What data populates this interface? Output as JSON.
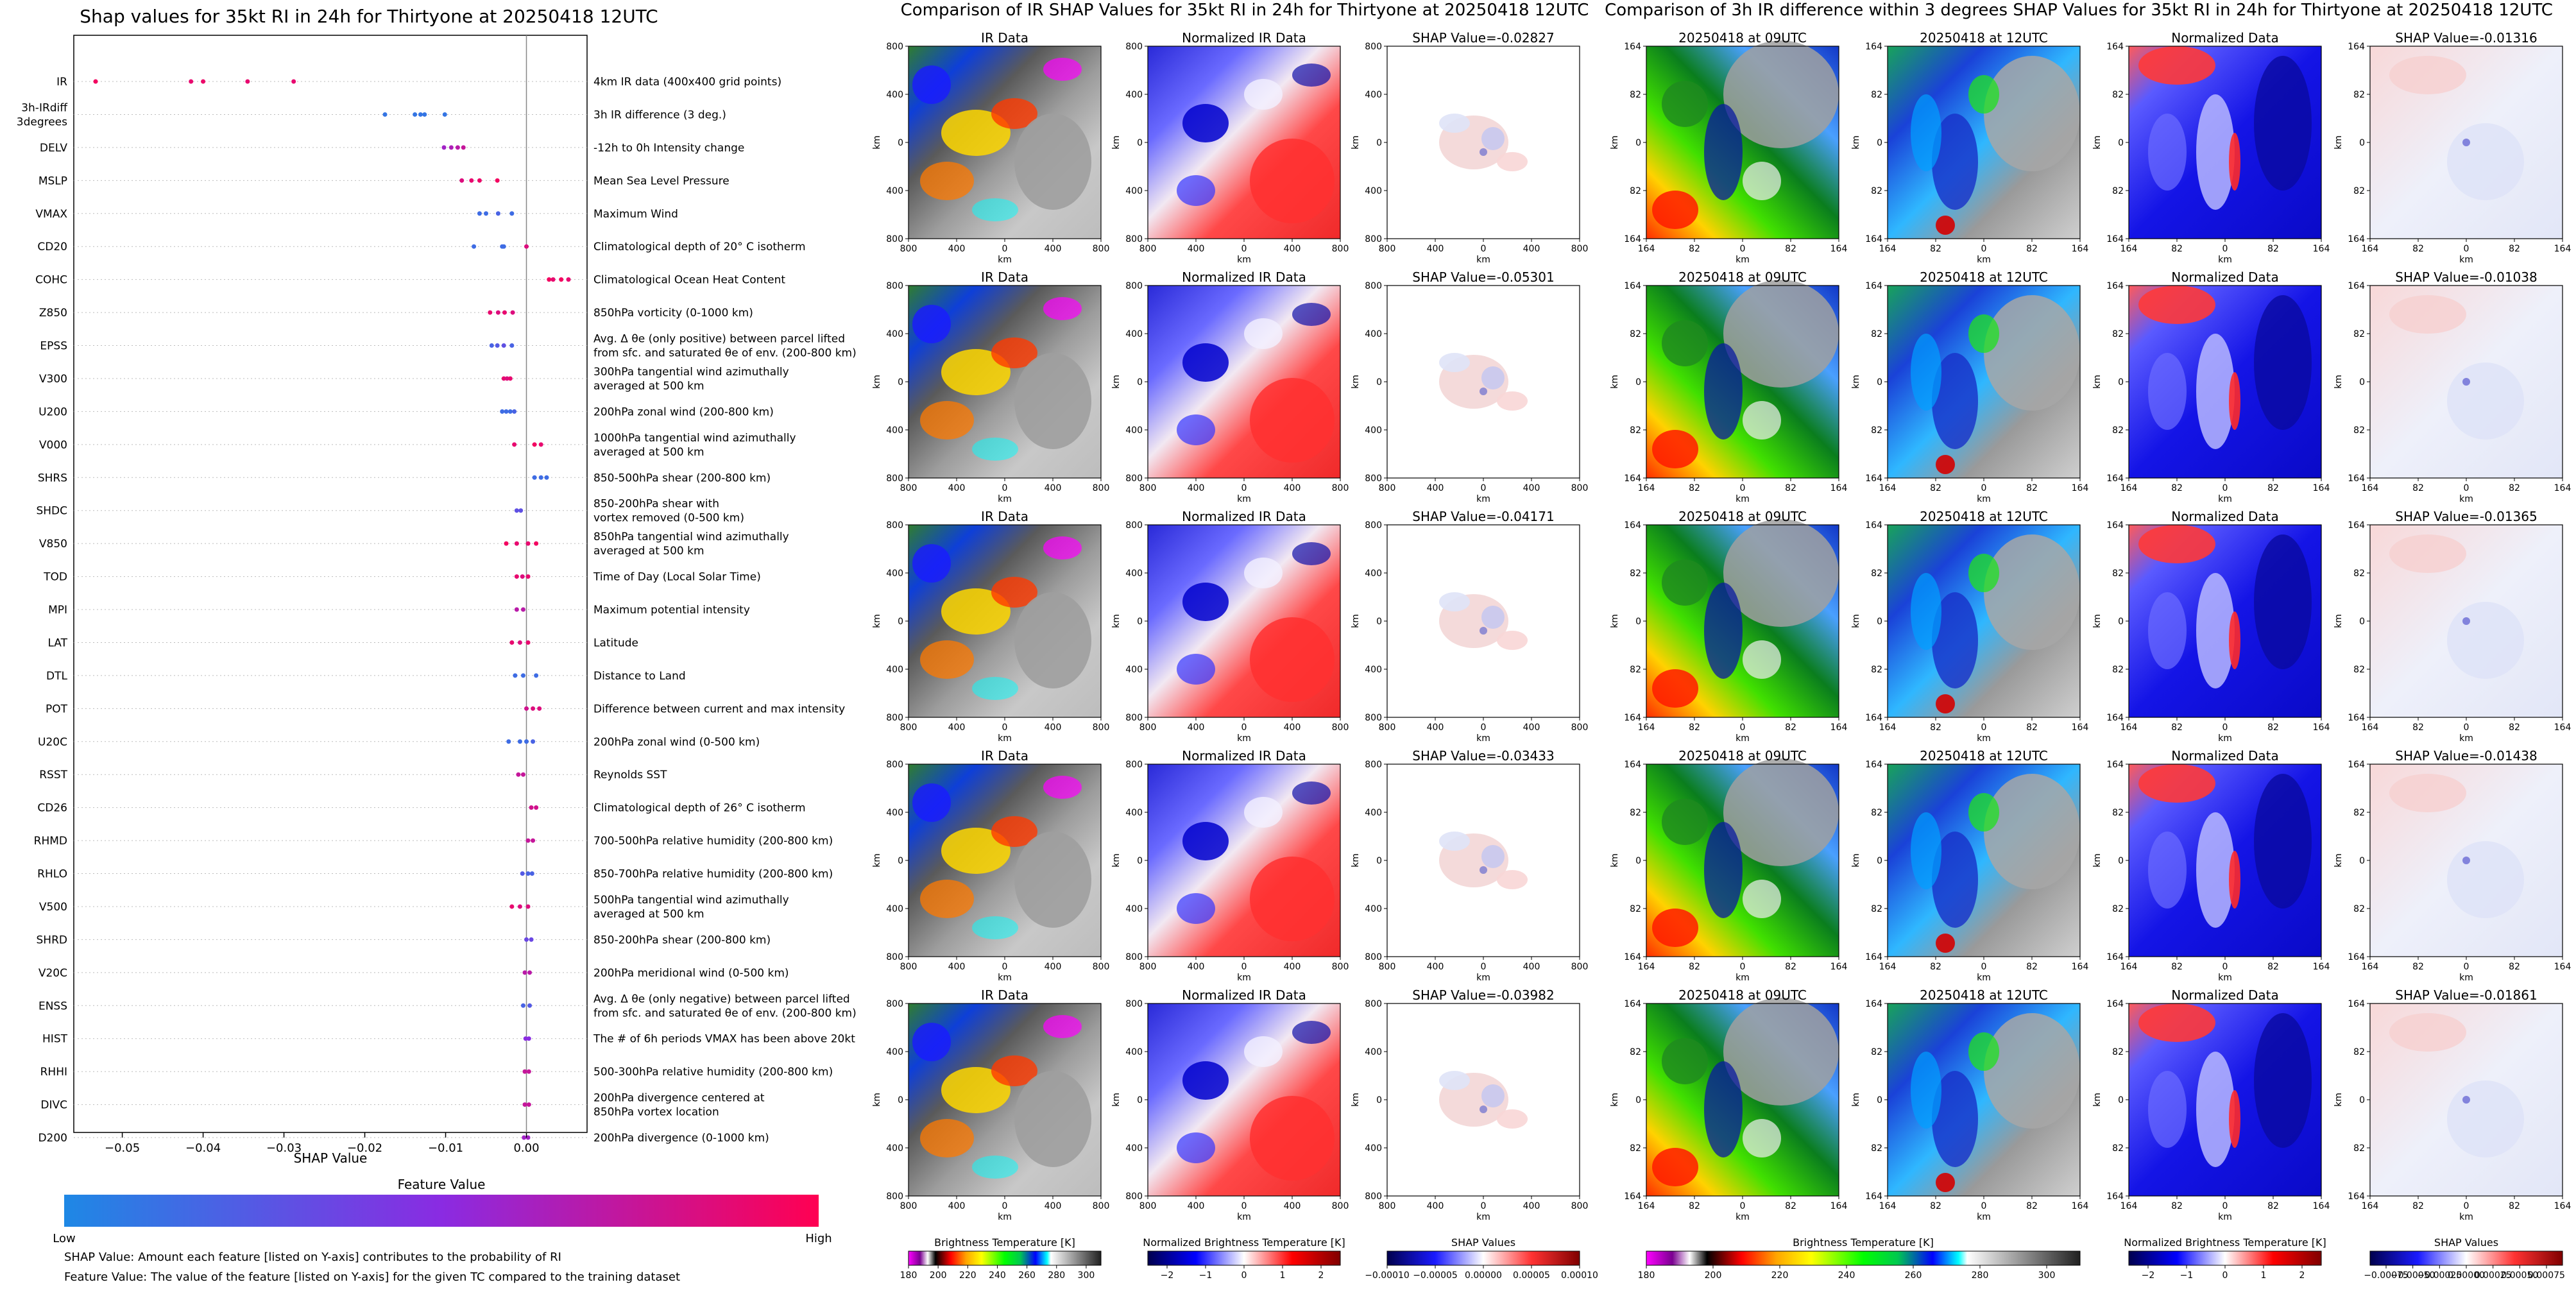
{
  "figure": {
    "left_title": "Shap values for 35kt RI in 24h for Thirtyone at 20250418 12UTC",
    "mid_title": "Comparison of IR SHAP Values for 35kt RI in 24h for Thirtyone at 20250418 12UTC",
    "right_title": "Comparison of 3h IR difference within 3 degrees SHAP Values for 35kt RI in 24h for Thirtyone at 20250418 12UTC",
    "footnote_1": "SHAP Value: Amount each feature [listed on Y-axis] contributes to the probability of RI",
    "footnote_2": "Feature Value: The value of the feature [listed on Y-axis] for the given TC compared to the training dataset"
  },
  "colors": {
    "low": "#1e88e5",
    "high": "#ff0052"
  },
  "chart_data": [
    {
      "type": "scatter",
      "title": "Shap values for 35kt RI in 24h for Thirtyone at 20250418 12UTC",
      "xlabel": "SHAP Value",
      "xlim": [
        -0.056,
        0.0075
      ],
      "xticks": [
        -0.05,
        -0.04,
        -0.03,
        -0.02,
        -0.01,
        0.0
      ],
      "xtick_labels": [
        "−0.05",
        "−0.04",
        "−0.03",
        "−0.02",
        "−0.01",
        "0.00"
      ],
      "colorbar": {
        "title": "Feature Value",
        "low_label": "Low",
        "high_label": "High"
      },
      "features": [
        {
          "code": "IR",
          "desc": "4km IR data (400x400 grid points)",
          "points": [
            [
              -0.0533,
              0.95
            ],
            [
              -0.0415,
              0.9
            ],
            [
              -0.04,
              0.92
            ],
            [
              -0.0345,
              0.9
            ],
            [
              -0.0288,
              0.9
            ]
          ]
        },
        {
          "code": "3h-IRdiff\n3degrees",
          "desc": "3h IR difference (3 deg.)",
          "points": [
            [
              -0.0175,
              0.1
            ],
            [
              -0.0138,
              0.1
            ],
            [
              -0.0131,
              0.1
            ],
            [
              -0.0126,
              0.1
            ],
            [
              -0.0101,
              0.1
            ]
          ]
        },
        {
          "code": "DELV",
          "desc": "-12h to 0h Intensity change",
          "points": [
            [
              -0.0102,
              0.6
            ],
            [
              -0.0093,
              0.65
            ],
            [
              -0.0085,
              0.7
            ],
            [
              -0.0078,
              0.75
            ]
          ]
        },
        {
          "code": "MSLP",
          "desc": "Mean Sea Level Pressure",
          "points": [
            [
              -0.008,
              0.85
            ],
            [
              -0.0068,
              0.9
            ],
            [
              -0.0058,
              0.92
            ],
            [
              -0.0036,
              0.95
            ]
          ]
        },
        {
          "code": "VMAX",
          "desc": "Maximum Wind",
          "points": [
            [
              -0.0058,
              0.15
            ],
            [
              -0.005,
              0.15
            ],
            [
              -0.0035,
              0.2
            ],
            [
              -0.0018,
              0.15
            ]
          ]
        },
        {
          "code": "CD20",
          "desc": "Climatological depth of 20° C isotherm",
          "points": [
            [
              -0.0065,
              0.15
            ],
            [
              -0.003,
              0.15
            ],
            [
              -0.0028,
              0.15
            ],
            [
              0.0,
              0.85
            ]
          ]
        },
        {
          "code": "COHC",
          "desc": "Climatological Ocean Heat Content",
          "points": [
            [
              0.0028,
              0.95
            ],
            [
              0.0033,
              0.9
            ],
            [
              0.0043,
              0.95
            ],
            [
              0.0052,
              0.9
            ]
          ]
        },
        {
          "code": "Z850",
          "desc": "850hPa vorticity (0-1000 km)",
          "points": [
            [
              -0.0045,
              0.9
            ],
            [
              -0.0035,
              0.85
            ],
            [
              -0.0027,
              0.9
            ],
            [
              -0.0017,
              0.85
            ]
          ]
        },
        {
          "code": "EPSS",
          "desc": "Avg. Δ θe (only positive) between parcel lifted\nfrom sfc. and saturated θe of env. (200-800 km)",
          "points": [
            [
              -0.0043,
              0.2
            ],
            [
              -0.0036,
              0.25
            ],
            [
              -0.0028,
              0.3
            ],
            [
              -0.0018,
              0.2
            ]
          ]
        },
        {
          "code": "V300",
          "desc": "300hPa tangential wind azimuthally\naveraged at 500 km",
          "points": [
            [
              -0.0028,
              0.9
            ],
            [
              -0.0024,
              0.85
            ],
            [
              -0.002,
              0.9
            ]
          ]
        },
        {
          "code": "U200",
          "desc": "200hPa zonal wind (200-800 km)",
          "points": [
            [
              -0.003,
              0.15
            ],
            [
              -0.0025,
              0.15
            ],
            [
              -0.002,
              0.15
            ],
            [
              -0.0015,
              0.2
            ]
          ]
        },
        {
          "code": "V000",
          "desc": "1000hPa tangential wind azimuthally\naveraged at 500 km",
          "points": [
            [
              -0.0015,
              0.9
            ],
            [
              0.001,
              0.95
            ],
            [
              0.0018,
              0.9
            ]
          ]
        },
        {
          "code": "SHRS",
          "desc": "850-500hPa shear (200-800 km)",
          "points": [
            [
              0.001,
              0.15
            ],
            [
              0.0018,
              0.15
            ],
            [
              0.0025,
              0.15
            ]
          ]
        },
        {
          "code": "SHDC",
          "desc": "850-200hPa shear with\nvortex removed (0-500 km)",
          "points": [
            [
              -0.0012,
              0.3
            ],
            [
              -0.0007,
              0.3
            ]
          ]
        },
        {
          "code": "V850",
          "desc": "850hPa tangential wind azimuthally\naveraged at 500 km",
          "points": [
            [
              -0.0025,
              0.95
            ],
            [
              -0.0012,
              0.9
            ],
            [
              0.0002,
              0.9
            ],
            [
              0.0012,
              0.95
            ]
          ]
        },
        {
          "code": "TOD",
          "desc": "Time of Day (Local Solar Time)",
          "points": [
            [
              -0.0012,
              0.9
            ],
            [
              -0.0005,
              0.85
            ],
            [
              0.0002,
              0.9
            ]
          ]
        },
        {
          "code": "MPI",
          "desc": "Maximum potential intensity",
          "points": [
            [
              -0.0012,
              0.7
            ],
            [
              -0.0004,
              0.7
            ]
          ]
        },
        {
          "code": "LAT",
          "desc": "Latitude",
          "points": [
            [
              -0.0018,
              0.9
            ],
            [
              -0.0008,
              0.85
            ],
            [
              0.0002,
              0.9
            ]
          ]
        },
        {
          "code": "DTL",
          "desc": "Distance to Land",
          "points": [
            [
              -0.0014,
              0.15
            ],
            [
              -0.0004,
              0.15
            ],
            [
              0.0012,
              0.15
            ]
          ]
        },
        {
          "code": "POT",
          "desc": "Difference between current and max intensity",
          "points": [
            [
              0.0,
              0.8
            ],
            [
              0.0008,
              0.85
            ],
            [
              0.0016,
              0.85
            ]
          ]
        },
        {
          "code": "U20C",
          "desc": "200hPa zonal wind (0-500 km)",
          "points": [
            [
              -0.0022,
              0.15
            ],
            [
              -0.0008,
              0.15
            ],
            [
              0.0,
              0.15
            ],
            [
              0.0008,
              0.2
            ]
          ]
        },
        {
          "code": "RSST",
          "desc": "Reynolds SST",
          "points": [
            [
              -0.001,
              0.75
            ],
            [
              -0.0004,
              0.75
            ]
          ]
        },
        {
          "code": "CD26",
          "desc": "Climatological depth of 26° C isotherm",
          "points": [
            [
              0.0006,
              0.8
            ],
            [
              0.0012,
              0.8
            ]
          ]
        },
        {
          "code": "RHMD",
          "desc": "700-500hPa relative humidity (200-800 km)",
          "points": [
            [
              0.0002,
              0.75
            ],
            [
              0.0008,
              0.75
            ]
          ]
        },
        {
          "code": "RHLO",
          "desc": "850-700hPa relative humidity (200-800 km)",
          "points": [
            [
              -0.0005,
              0.25
            ],
            [
              0.0002,
              0.2
            ],
            [
              0.0007,
              0.2
            ]
          ]
        },
        {
          "code": "V500",
          "desc": "500hPa tangential wind azimuthally\naveraged at 500 km",
          "points": [
            [
              -0.0018,
              0.9
            ],
            [
              -0.0008,
              0.85
            ],
            [
              0.0002,
              0.85
            ]
          ]
        },
        {
          "code": "SHRD",
          "desc": "850-200hPa shear (200-800 km)",
          "points": [
            [
              0.0,
              0.35
            ],
            [
              0.0006,
              0.35
            ]
          ]
        },
        {
          "code": "V20C",
          "desc": "200hPa meridional wind (0-500 km)",
          "points": [
            [
              -0.0002,
              0.7
            ],
            [
              0.0004,
              0.7
            ]
          ]
        },
        {
          "code": "ENSS",
          "desc": "Avg. Δ θe (only negative) between parcel lifted\nfrom sfc. and saturated θe of env. (200-800 km)",
          "points": [
            [
              -0.0004,
              0.2
            ],
            [
              0.0004,
              0.25
            ]
          ]
        },
        {
          "code": "HIST",
          "desc": "The # of 6h periods VMAX has been above 20kt",
          "points": [
            [
              -0.0001,
              0.5
            ],
            [
              0.0003,
              0.5
            ]
          ]
        },
        {
          "code": "RHHI",
          "desc": "500-300hPa relative humidity (200-800 km)",
          "points": [
            [
              -0.0002,
              0.75
            ],
            [
              0.0003,
              0.75
            ]
          ]
        },
        {
          "code": "DIVC",
          "desc": "200hPa divergence centered at\n850hPa vortex location",
          "points": [
            [
              -0.0002,
              0.75
            ],
            [
              0.0003,
              0.75
            ]
          ]
        },
        {
          "code": "D200",
          "desc": "200hPa divergence (0-1000 km)",
          "points": [
            [
              -0.0003,
              0.6
            ],
            [
              0.0002,
              0.6
            ]
          ]
        }
      ]
    },
    {
      "type": "heatmap",
      "title": "Comparison of IR SHAP Values for 35kt RI in 24h for Thirtyone at 20250418 12UTC",
      "columns": [
        {
          "kind": "ir",
          "titles": [
            "IR Data",
            "IR Data",
            "IR Data",
            "IR Data",
            "IR Data"
          ],
          "xticks": [
            "800",
            "400",
            "0",
            "400",
            "800"
          ],
          "yticks": [
            "800",
            "400",
            "0",
            "400",
            "800"
          ],
          "xlabel": "km",
          "ylabel": "km"
        },
        {
          "kind": "norm",
          "titles": [
            "Normalized IR Data",
            "Normalized IR Data",
            "Normalized IR Data",
            "Normalized IR Data",
            "Normalized IR Data"
          ],
          "xticks": [
            "800",
            "400",
            "0",
            "400",
            "800"
          ],
          "yticks": [
            "800",
            "400",
            "0",
            "400",
            "800"
          ],
          "xlabel": "km",
          "ylabel": "km"
        },
        {
          "kind": "shap",
          "titles": [
            "SHAP Value=-0.02827",
            "SHAP Value=-0.05301",
            "SHAP Value=-0.04171",
            "SHAP Value=-0.03433",
            "SHAP Value=-0.03982"
          ],
          "xticks": [
            "800",
            "400",
            "0",
            "400",
            "800"
          ],
          "yticks": [
            "800",
            "400",
            "0",
            "400",
            "800"
          ],
          "xlabel": "km",
          "ylabel": "km"
        }
      ],
      "colorbars": [
        {
          "label": "Brightness Temperature [K]",
          "ticks": [
            "180",
            "200",
            "220",
            "240",
            "260",
            "280",
            "300"
          ],
          "range": [
            180,
            310
          ]
        },
        {
          "label": "Normalized Brightness Temperature [K]",
          "ticks": [
            "−2",
            "−1",
            "0",
            "1",
            "2"
          ],
          "range": [
            -2.5,
            2.5
          ]
        },
        {
          "label": "SHAP Values",
          "ticks": [
            "−0.00010",
            "−0.00005",
            "0.00000",
            "0.00005",
            "0.00010"
          ],
          "range": [
            -0.0001,
            0.0001
          ]
        }
      ]
    },
    {
      "type": "heatmap",
      "title": "Comparison of 3h IR difference within 3 degrees SHAP Values for 35kt RI in 24h for Thirtyone at 20250418 12UTC",
      "columns": [
        {
          "kind": "ir09",
          "titles": [
            "20250418 at 09UTC",
            "20250418 at 09UTC",
            "20250418 at 09UTC",
            "20250418 at 09UTC",
            "20250418 at 09UTC"
          ],
          "xticks": [
            "164",
            "82",
            "0",
            "82",
            "164"
          ],
          "yticks": [
            "164",
            "82",
            "0",
            "82",
            "164"
          ],
          "xlabel": "km",
          "ylabel": "km"
        },
        {
          "kind": "ir12",
          "titles": [
            "20250418 at 12UTC",
            "20250418 at 12UTC",
            "20250418 at 12UTC",
            "20250418 at 12UTC",
            "20250418 at 12UTC"
          ],
          "xticks": [
            "164",
            "82",
            "0",
            "82",
            "164"
          ],
          "yticks": [
            "164",
            "82",
            "0",
            "82",
            "164"
          ],
          "xlabel": "km",
          "ylabel": "km"
        },
        {
          "kind": "norm2",
          "titles": [
            "Normalized Data",
            "Normalized Data",
            "Normalized Data",
            "Normalized Data",
            "Normalized Data"
          ],
          "xticks": [
            "164",
            "82",
            "0",
            "82",
            "164"
          ],
          "yticks": [
            "164",
            "82",
            "0",
            "82",
            "164"
          ],
          "xlabel": "km",
          "ylabel": "km"
        },
        {
          "kind": "shap2",
          "titles": [
            "SHAP Value=-0.01316",
            "SHAP Value=-0.01038",
            "SHAP Value=-0.01365",
            "SHAP Value=-0.01438",
            "SHAP Value=-0.01861"
          ],
          "xticks": [
            "164",
            "82",
            "0",
            "82",
            "164"
          ],
          "yticks": [
            "164",
            "82",
            "0",
            "82",
            "164"
          ],
          "xlabel": "km",
          "ylabel": "km"
        }
      ],
      "colorbars": [
        {
          "label": "Brightness Temperature [K]",
          "ticks": [
            "180",
            "200",
            "220",
            "240",
            "260",
            "280",
            "300"
          ],
          "range": [
            180,
            310
          ]
        },
        {
          "label": "Normalized Brightness Temperature [K]",
          "ticks": [
            "−2",
            "−1",
            "0",
            "1",
            "2"
          ],
          "range": [
            -2.5,
            2.5
          ]
        },
        {
          "label": "SHAP Values",
          "ticks": [
            "−0.00075",
            "−0.00050",
            "−0.00025",
            "0.00000",
            "0.00025",
            "0.00050",
            "0.00075"
          ],
          "range": [
            -0.0009,
            0.0009
          ]
        }
      ]
    }
  ]
}
